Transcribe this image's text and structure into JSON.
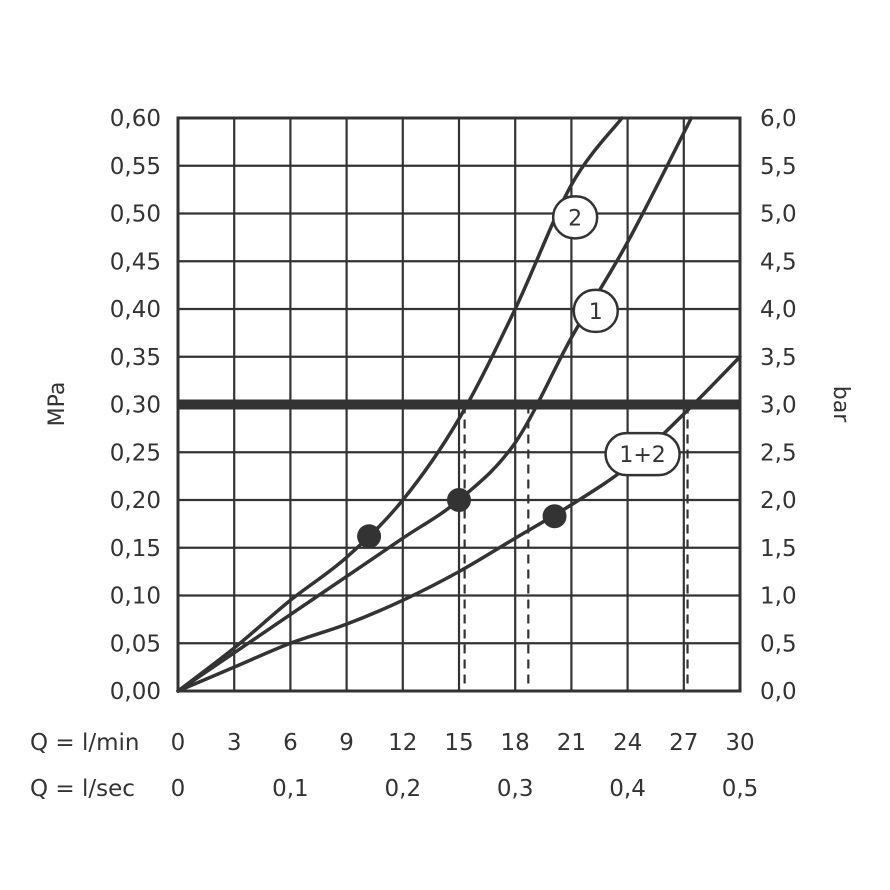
{
  "chart_data": {
    "type": "line",
    "x": {
      "label_lmin": "Q = l/min",
      "label_lsec": "Q = l/sec",
      "range": [
        0,
        30
      ],
      "ticks_lmin": [
        "0",
        "3",
        "6",
        "9",
        "12",
        "15",
        "18",
        "21",
        "24",
        "27",
        "30"
      ],
      "ticks_lsec": [
        "0",
        "0,1",
        "0,2",
        "0,3",
        "0,4",
        "0,5"
      ],
      "ticks_lsec_values": [
        0,
        6,
        12,
        18,
        24,
        30
      ]
    },
    "y_left": {
      "label": "MPa",
      "range": [
        0,
        0.6
      ],
      "ticks": [
        "0,00",
        "0,05",
        "0,10",
        "0,15",
        "0,20",
        "0,25",
        "0,30",
        "0,35",
        "0,40",
        "0,45",
        "0,50",
        "0,55",
        "0,60"
      ]
    },
    "y_right": {
      "label": "bar",
      "range": [
        0,
        6
      ],
      "ticks": [
        "0,0",
        "0,5",
        "1,0",
        "1,5",
        "2,0",
        "2,5",
        "3,0",
        "3,5",
        "4,0",
        "4,5",
        "5,0",
        "5,5",
        "6,0"
      ]
    },
    "grid": true,
    "reference_line": {
      "y": 0.3
    },
    "series": [
      {
        "name": "2",
        "x": [
          0,
          3,
          6,
          9,
          12,
          15,
          18,
          21,
          23.7
        ],
        "y": [
          0,
          0.045,
          0.095,
          0.14,
          0.2,
          0.285,
          0.4,
          0.53,
          0.6
        ],
        "marker": {
          "x": 10.2,
          "y": 0.162
        },
        "intersect_x": 15.3
      },
      {
        "name": "1",
        "x": [
          0,
          3,
          6,
          9,
          12,
          15,
          18,
          21,
          24,
          27.4
        ],
        "y": [
          0,
          0.04,
          0.08,
          0.12,
          0.16,
          0.2,
          0.26,
          0.37,
          0.47,
          0.6
        ],
        "marker": {
          "x": 15,
          "y": 0.2
        },
        "intersect_x": 18.7
      },
      {
        "name": "1+2",
        "x": [
          0,
          3,
          6,
          9,
          12,
          15,
          18,
          21,
          24,
          27,
          30
        ],
        "y": [
          0,
          0.025,
          0.05,
          0.07,
          0.095,
          0.125,
          0.16,
          0.195,
          0.235,
          0.29,
          0.35
        ],
        "marker": {
          "x": 20.1,
          "y": 0.183
        },
        "intersect_x": 27.2
      }
    ]
  }
}
